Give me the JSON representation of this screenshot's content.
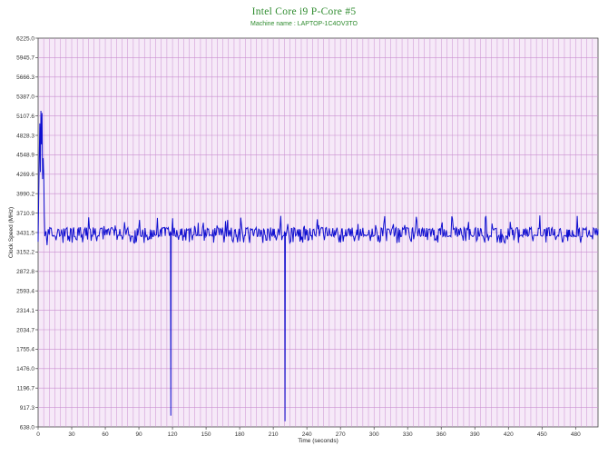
{
  "header": {
    "title": "Intel Core i9 P-Core #5",
    "subtitle": "Machine name : LAPTOP-1C4OV3TO"
  },
  "colors": {
    "plot_background": "#f6e9f8",
    "grid": "#c98fd0",
    "series": "#1010d0",
    "title": "#2e8b2e"
  },
  "chart_data": {
    "type": "line",
    "title": "Intel Core i9 P-Core #5",
    "subtitle": "Machine name : LAPTOP-1C4OV3TO",
    "xlabel": "Time (seconds)",
    "ylabel": "Clock Speed (MHz)",
    "xlim": [
      0,
      500
    ],
    "ylim": [
      638.0,
      6225.0
    ],
    "x_ticks": [
      "0",
      "30",
      "60",
      "90",
      "120",
      "150",
      "180",
      "210",
      "240",
      "270",
      "300",
      "330",
      "360",
      "390",
      "420",
      "450",
      "480"
    ],
    "y_ticks": [
      "638.0",
      "917.3",
      "1196.7",
      "1476.0",
      "1755.4",
      "2034.7",
      "2314.1",
      "2593.4",
      "2872.8",
      "3152.2",
      "3431.5",
      "3710.9",
      "3990.2",
      "4269.6",
      "4548.9",
      "4828.3",
      "5107.6",
      "5387.0",
      "5666.3",
      "5945.7",
      "6225.0"
    ],
    "grid": true,
    "legend": "none",
    "series": [
      {
        "values_description_free": true,
        "points": [
          [
            0,
            3300
          ],
          [
            1,
            4500
          ],
          [
            1.5,
            5000
          ],
          [
            2,
            4300
          ],
          [
            2.5,
            5180
          ],
          [
            3,
            4700
          ],
          [
            3.5,
            5150
          ],
          [
            4,
            4200
          ],
          [
            4.5,
            4500
          ],
          [
            5,
            4300
          ],
          [
            5.5,
            3700
          ],
          [
            6,
            3380
          ],
          [
            7,
            3450
          ],
          [
            8,
            3250
          ],
          [
            9,
            3480
          ],
          [
            10,
            3400
          ],
          [
            118,
            3450
          ],
          [
            118.5,
            800
          ],
          [
            119,
            3420
          ],
          [
            220,
            3450
          ],
          [
            220.5,
            720
          ],
          [
            221,
            3420
          ]
        ],
        "baseline_value": 3410,
        "high_value": 3520,
        "low_value": 3280
      }
    ]
  }
}
